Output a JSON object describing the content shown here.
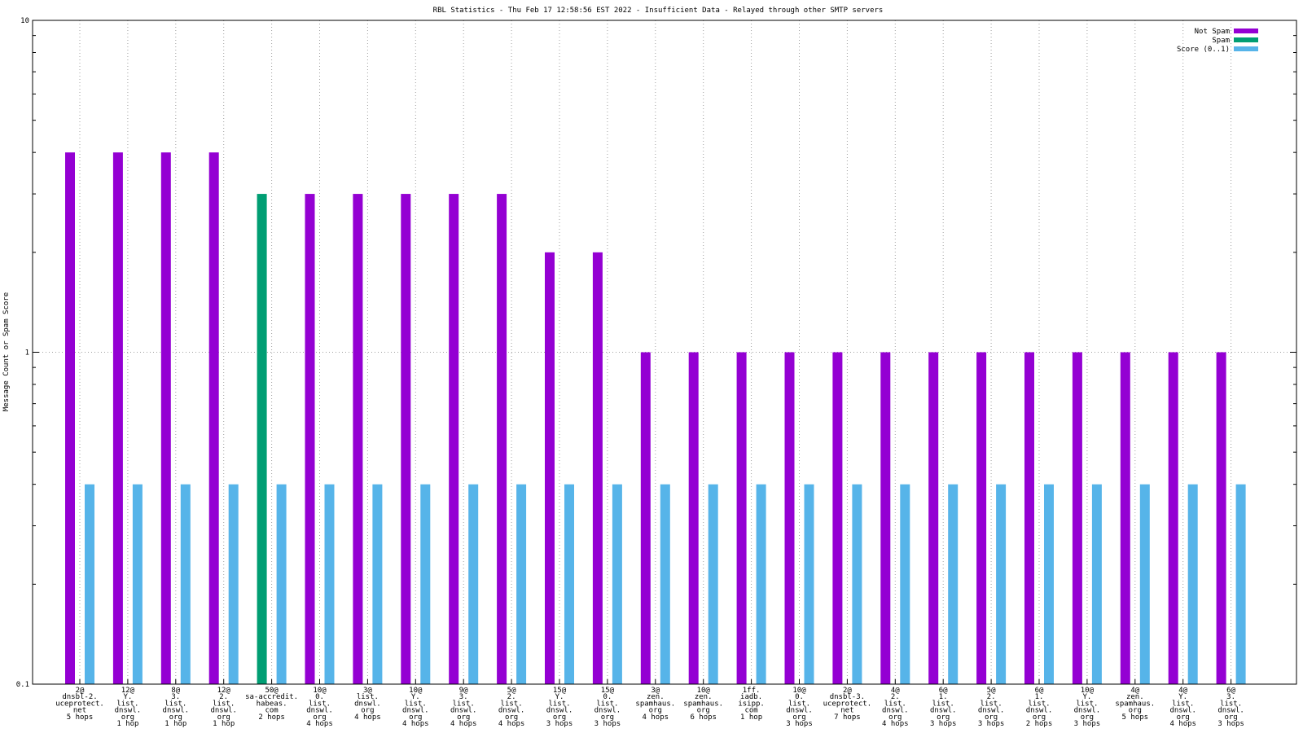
{
  "chart_data": {
    "type": "bar",
    "title": "RBL Statistics - Thu Feb 17 12:58:56 EST 2022 - Insufficient Data - Relayed through other SMTP servers",
    "ylabel": "Message Count or Spam Score",
    "xlabel": "",
    "yscale": "log",
    "ylim": [
      0.1,
      10
    ],
    "yticks": [
      "0.1",
      "1",
      "10"
    ],
    "grid": true,
    "legend_position": "top-right",
    "categories": [
      [
        "2@",
        "dnsbl-2.",
        "uceprotect.",
        "net",
        "5 hops"
      ],
      [
        "12@",
        "Y.",
        "list.",
        "dnswl.",
        "org",
        "1 hop"
      ],
      [
        "8@",
        "3.",
        "list.",
        "dnswl.",
        "org",
        "1 hop"
      ],
      [
        "12@",
        "2.",
        "list.",
        "dnswl.",
        "org",
        "1 hop"
      ],
      [
        "50@",
        "sa-accredit.",
        "habeas.",
        "com",
        "2 hops"
      ],
      [
        "10@",
        "0.",
        "list.",
        "dnswl.",
        "org",
        "4 hops"
      ],
      [
        "3@",
        "list.",
        "dnswl.",
        "org",
        "4 hops"
      ],
      [
        "10@",
        "Y.",
        "list.",
        "dnswl.",
        "org",
        "4 hops"
      ],
      [
        "9@",
        "3.",
        "list.",
        "dnswl.",
        "org",
        "4 hops"
      ],
      [
        "5@",
        "2.",
        "list.",
        "dnswl.",
        "org",
        "4 hops"
      ],
      [
        "15@",
        "Y.",
        "list.",
        "dnswl.",
        "org",
        "3 hops"
      ],
      [
        "15@",
        "0.",
        "list.",
        "dnswl.",
        "org",
        "3 hops"
      ],
      [
        "3@",
        "zen.",
        "spamhaus.",
        "org",
        "4 hops"
      ],
      [
        "10@",
        "zen.",
        "spamhaus.",
        "org",
        "6 hops"
      ],
      [
        "1ff.",
        "iadb.",
        "isipp.",
        "com",
        "1 hop"
      ],
      [
        "10@",
        "0.",
        "list.",
        "dnswl.",
        "org",
        "3 hops"
      ],
      [
        "2@",
        "dnsbl-3.",
        "uceprotect.",
        "net",
        "7 hops"
      ],
      [
        "4@",
        "2.",
        "list.",
        "dnswl.",
        "org",
        "4 hops"
      ],
      [
        "6@",
        "1.",
        "list.",
        "dnswl.",
        "org",
        "3 hops"
      ],
      [
        "5@",
        "2.",
        "list.",
        "dnswl.",
        "org",
        "3 hops"
      ],
      [
        "6@",
        "1.",
        "list.",
        "dnswl.",
        "org",
        "2 hops"
      ],
      [
        "10@",
        "Y.",
        "list.",
        "dnswl.",
        "org",
        "3 hops"
      ],
      [
        "4@",
        "zen.",
        "spamhaus.",
        "org",
        "5 hops"
      ],
      [
        "4@",
        "Y.",
        "list.",
        "dnswl.",
        "org",
        "4 hops"
      ],
      [
        "6@",
        "3.",
        "list.",
        "dnswl.",
        "org",
        "3 hops"
      ]
    ],
    "series": [
      {
        "name": "Not Spam",
        "color": "#9400d3",
        "values": [
          4,
          4,
          4,
          4,
          0,
          3,
          3,
          3,
          3,
          3,
          2,
          2,
          1,
          1,
          1,
          1,
          1,
          1,
          1,
          1,
          1,
          1,
          1,
          1,
          1
        ]
      },
      {
        "name": "Spam",
        "color": "#009e73",
        "values": [
          0,
          0,
          0,
          0,
          3,
          0,
          0,
          0,
          0,
          0,
          0,
          0,
          0,
          0,
          0,
          0,
          0,
          0,
          0,
          0,
          0,
          0,
          0,
          0,
          0
        ]
      },
      {
        "name": "Score (0..1)",
        "color": "#56b4e9",
        "values": [
          0.4,
          0.4,
          0.4,
          0.4,
          0.4,
          0.4,
          0.4,
          0.4,
          0.4,
          0.4,
          0.4,
          0.4,
          0.4,
          0.4,
          0.4,
          0.4,
          0.4,
          0.4,
          0.4,
          0.4,
          0.4,
          0.4,
          0.4,
          0.4,
          0.4
        ]
      }
    ]
  }
}
